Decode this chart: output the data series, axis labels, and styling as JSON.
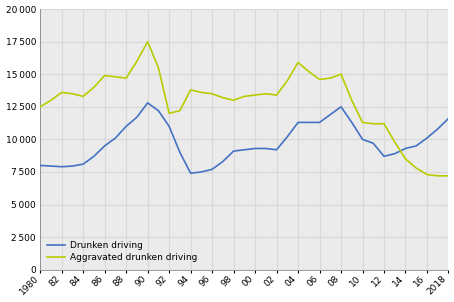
{
  "years": [
    1980,
    1981,
    1982,
    1983,
    1984,
    1985,
    1986,
    1987,
    1988,
    1989,
    1990,
    1991,
    1992,
    1993,
    1994,
    1995,
    1996,
    1997,
    1998,
    1999,
    2000,
    2001,
    2002,
    2003,
    2004,
    2005,
    2006,
    2007,
    2008,
    2009,
    2010,
    2011,
    2012,
    2013,
    2014,
    2015,
    2016,
    2017,
    2018
  ],
  "drunken_driving": [
    8000,
    7950,
    7900,
    7950,
    8100,
    8700,
    9500,
    10100,
    11000,
    11700,
    12800,
    12200,
    11000,
    9000,
    7400,
    7500,
    7700,
    8300,
    9100,
    9200,
    9300,
    9300,
    9200,
    10200,
    11300,
    11300,
    11300,
    11900,
    12500,
    11300,
    10000,
    9700,
    8700,
    8900,
    9300,
    9500,
    10100,
    10800,
    11600
  ],
  "aggravated_drunken": [
    12500,
    13000,
    13600,
    13500,
    13300,
    14000,
    14900,
    14800,
    14700,
    16000,
    17500,
    15500,
    12000,
    12200,
    13800,
    13600,
    13500,
    13200,
    13000,
    13300,
    13400,
    13500,
    13400,
    14500,
    15900,
    15200,
    14600,
    14700,
    15000,
    13000,
    11300,
    11200,
    11200,
    9800,
    8500,
    7800,
    7300,
    7200,
    7200
  ],
  "drunken_color": "#4472c4",
  "aggravated_color": "#b8cc00",
  "yticks": [
    0,
    2500,
    5000,
    7500,
    10000,
    12500,
    15000,
    17500,
    20000
  ],
  "xtick_years": [
    1980,
    1982,
    1984,
    1986,
    1988,
    1990,
    1992,
    1994,
    1996,
    1998,
    2000,
    2002,
    2004,
    2006,
    2008,
    2010,
    2012,
    2014,
    2016,
    2018
  ],
  "xtick_labels": [
    "1980",
    "82",
    "84",
    "86",
    "88",
    "90",
    "92",
    "94",
    "96",
    "98",
    "00",
    "02",
    "04",
    "06",
    "08",
    "10",
    "12",
    "14",
    "16",
    "2018"
  ],
  "legend_drunken": "Drunken driving",
  "legend_aggravated": "Aggravated drunken driving",
  "ylim": [
    0,
    20000
  ],
  "xlim": [
    1980,
    2018
  ],
  "grid_color": "#d8d8d8",
  "background_color": "#ebebeb"
}
